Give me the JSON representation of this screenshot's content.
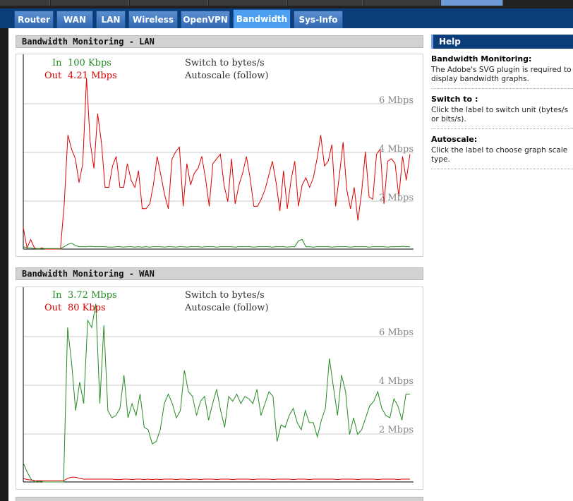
{
  "nav": {
    "tabs": [
      {
        "label": "Router",
        "active": false
      },
      {
        "label": "WAN",
        "active": false
      },
      {
        "label": "LAN",
        "active": false
      },
      {
        "label": "Wireless",
        "active": false
      },
      {
        "label": "OpenVPN",
        "active": false
      },
      {
        "label": "Bandwidth",
        "active": true
      },
      {
        "label": "Sys-Info",
        "active": false
      }
    ]
  },
  "lan": {
    "title": "Bandwidth Monitoring - LAN",
    "in_label": "In",
    "in_value": "100 Kbps",
    "out_label": "Out",
    "out_value": "4.21 Mbps",
    "switch_label": "Switch to bytes/s",
    "autoscale_label": "Autoscale (follow)",
    "scale_labels": [
      "6 Mbps",
      "4 Mbps",
      "2 Mbps"
    ]
  },
  "wan": {
    "title": "Bandwidth Monitoring - WAN",
    "in_label": "In",
    "in_value": "3.72 Mbps",
    "out_label": "Out",
    "out_value": "80 Kbps",
    "switch_label": "Switch to bytes/s",
    "autoscale_label": "Autoscale (follow)",
    "scale_labels": [
      "6 Mbps",
      "4 Mbps",
      "2 Mbps"
    ]
  },
  "help": {
    "title": "Help",
    "items": [
      {
        "heading": "Bandwidth Monitoring:",
        "text": "The Adobe's SVG plugin is required to display bandwidth graphs."
      },
      {
        "heading": "Switch to :",
        "text": "Click the label to switch unit (bytes/s or bits/s)."
      },
      {
        "heading": "Autoscale:",
        "text": "Click the label to choose graph scale type."
      }
    ]
  },
  "colors": {
    "in": "#228b22",
    "out": "#dd0000",
    "nav": "#0a3d7a",
    "active_tab": "#4da0f0"
  },
  "chart_data": [
    {
      "type": "line",
      "ylim": [
        0,
        8.2
      ],
      "series": [
        {
          "name": "Out",
          "values": [
            0.9,
            0.05,
            0.4,
            0.05,
            0,
            0.05,
            0,
            0,
            0,
            0,
            0,
            1.9,
            4.8,
            4.2,
            3.8,
            2.8,
            3.6,
            7.2,
            4.5,
            3.4,
            5.7,
            4.5,
            2.6,
            2.6,
            3.5,
            3.9,
            2.6,
            2.6,
            3.6,
            2.9,
            2.6,
            3.3,
            1.7,
            1.7,
            1.9,
            2.7,
            3.9,
            3.1,
            2.3,
            1.7,
            3.8,
            4.1,
            4.3,
            1.8,
            3.6,
            2.7,
            3.2,
            3.4,
            3.9,
            3.0,
            1.8,
            3.6,
            3.8,
            4.0,
            2.7,
            2.0,
            3.8,
            1.9,
            2.7,
            3.2,
            3.9,
            3.0,
            1.8,
            1.8,
            2.1,
            2.5,
            3.1,
            3.7,
            2.8,
            1.6,
            3.3,
            1.7,
            2.9,
            3.7,
            1.8,
            2.7,
            3.0,
            2.6,
            3.0,
            3.8,
            4.8,
            3.5,
            3.7,
            4.4,
            1.8,
            3.1,
            4.5,
            2.5,
            1.7,
            2.6,
            1.2,
            2.4,
            4.1,
            2.2,
            2.1,
            4.0,
            4.2,
            1.9,
            3.7,
            3.8,
            3.6,
            2.2,
            3.9,
            2.9,
            4.0
          ]
        },
        {
          "name": "In",
          "values": [
            0.1,
            0.05,
            0.05,
            0.02,
            0.02,
            0.02,
            0.02,
            0.02,
            0.02,
            0.02,
            0.02,
            0.1,
            0.2,
            0.25,
            0.15,
            0.1,
            0.1,
            0.1,
            0.12,
            0.1,
            0.1,
            0.1,
            0.1,
            0.08,
            0.08,
            0.1,
            0.1,
            0.08,
            0.1,
            0.1,
            0.08,
            0.1,
            0.08,
            0.1,
            0.08,
            0.1,
            0.1,
            0.1,
            0.08,
            0.1,
            0.1,
            0.08,
            0.1,
            0.1,
            0.08,
            0.1,
            0.1,
            0.1,
            0.08,
            0.1,
            0.1,
            0.1,
            0.08,
            0.1,
            0.1,
            0.1,
            0.1,
            0.08,
            0.1,
            0.1,
            0.1,
            0.1,
            0.08,
            0.1,
            0.1,
            0.1,
            0.1,
            0.08,
            0.1,
            0.1,
            0.1,
            0.08,
            0.1,
            0.1,
            0.35,
            0.4,
            0.1,
            0.1,
            0.08,
            0.1,
            0.1,
            0.1,
            0.1,
            0.08,
            0.1,
            0.1,
            0.1,
            0.1,
            0.08,
            0.1,
            0.1,
            0.1,
            0.1,
            0.08,
            0.1,
            0.1,
            0.1,
            0.1,
            0.08,
            0.1,
            0.1,
            0.1,
            0.12,
            0.1,
            0.1
          ]
        }
      ]
    },
    {
      "type": "line",
      "ylim": [
        0,
        8.2
      ],
      "series": [
        {
          "name": "In",
          "values": [
            0.8,
            0.4,
            0.1,
            0,
            0.05,
            0,
            0,
            0,
            0,
            0,
            0,
            6.5,
            5.0,
            3.0,
            4.2,
            3.3,
            6.8,
            6.5,
            7.5,
            3.3,
            6.6,
            3.0,
            2.7,
            2.8,
            3.1,
            4.5,
            2.7,
            3.3,
            2.8,
            3.7,
            2.3,
            2.2,
            1.6,
            1.7,
            2.2,
            3.3,
            3.7,
            3.3,
            2.7,
            3.0,
            4.7,
            3.8,
            3.6,
            2.8,
            3.4,
            3.6,
            2.6,
            3.3,
            3.9,
            3.0,
            2.3,
            3.6,
            3.4,
            3.7,
            3.3,
            3.6,
            3.5,
            3.3,
            3.9,
            2.8,
            3.3,
            3.8,
            3.6,
            1.7,
            2.4,
            2.3,
            2.8,
            3.1,
            2.5,
            2.2,
            3.0,
            2.5,
            2.5,
            1.9,
            2.6,
            3.1,
            5.2,
            4.0,
            2.8,
            4.5,
            3.8,
            2.0,
            2.7,
            2.0,
            2.2,
            2.7,
            3.2,
            3.4,
            3.8,
            3.1,
            2.8,
            2.7,
            3.5,
            3.2,
            2.6,
            3.7,
            3.7
          ]
        },
        {
          "name": "Out",
          "values": [
            0.15,
            0.1,
            0.08,
            0.05,
            0.05,
            0.05,
            0.05,
            0.05,
            0.05,
            0.05,
            0.05,
            0.15,
            0.2,
            0.2,
            0.15,
            0.12,
            0.12,
            0.12,
            0.12,
            0.12,
            0.12,
            0.12,
            0.12,
            0.1,
            0.1,
            0.12,
            0.12,
            0.1,
            0.12,
            0.12,
            0.1,
            0.12,
            0.1,
            0.12,
            0.1,
            0.12,
            0.12,
            0.12,
            0.1,
            0.12,
            0.12,
            0.1,
            0.12,
            0.12,
            0.1,
            0.12,
            0.12,
            0.12,
            0.1,
            0.12,
            0.12,
            0.12,
            0.1,
            0.12,
            0.12,
            0.12,
            0.12,
            0.1,
            0.12,
            0.12,
            0.12,
            0.12,
            0.1,
            0.12,
            0.12,
            0.12,
            0.12,
            0.1,
            0.12,
            0.12,
            0.12,
            0.1,
            0.12,
            0.12,
            0.12,
            0.12,
            0.12,
            0.12,
            0.1,
            0.12,
            0.12,
            0.12,
            0.12,
            0.1,
            0.12,
            0.12,
            0.12,
            0.12,
            0.1,
            0.12,
            0.12,
            0.12,
            0.12,
            0.1,
            0.12,
            0.12,
            0.12
          ]
        }
      ]
    }
  ]
}
